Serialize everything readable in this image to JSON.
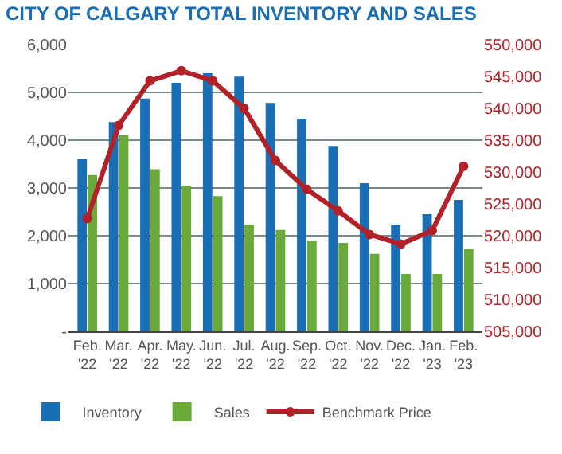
{
  "chart_data": {
    "type": "bar",
    "title": "CITY OF CALGARY TOTAL INVENTORY AND SALES",
    "categories": [
      "Feb. '22",
      "Mar. '22",
      "Apr. '22",
      "May. '22",
      "Jun. '22",
      "Jul. '22",
      "Aug. '22",
      "Sep. '22",
      "Oct. '22",
      "Nov. '22",
      "Dec. '22",
      "Jan. '23",
      "Feb. '23"
    ],
    "series": [
      {
        "name": "Inventory",
        "color": "#1a6fb4",
        "values": [
          3600,
          4380,
          4870,
          5200,
          5400,
          5330,
          4780,
          4450,
          3880,
          3100,
          2220,
          2450,
          2750
        ]
      },
      {
        "name": "Sales",
        "color": "#6aaa3a",
        "values": [
          3270,
          4100,
          3390,
          3050,
          2830,
          2230,
          2120,
          1900,
          1850,
          1620,
          1200,
          1200,
          1730
        ]
      },
      {
        "name": "Benchmark Price",
        "type": "line",
        "axis": "y2",
        "color": "#b22028",
        "marker": "circle",
        "values": [
          522700,
          537300,
          544300,
          545900,
          544300,
          540000,
          531800,
          527300,
          523900,
          520200,
          518700,
          520800,
          530900
        ]
      }
    ],
    "ylim": [
      0,
      6000
    ],
    "yticks": [
      {
        "value": 0,
        "label": "-"
      },
      {
        "value": 1000,
        "label": "1,000"
      },
      {
        "value": 2000,
        "label": "2,000"
      },
      {
        "value": 3000,
        "label": "3,000"
      },
      {
        "value": 4000,
        "label": "4,000"
      },
      {
        "value": 5000,
        "label": "5,000"
      },
      {
        "value": 6000,
        "label": "6,000"
      }
    ],
    "y2lim": [
      505000,
      550000
    ],
    "y2ticks": [
      {
        "value": 505000,
        "label": "505,000"
      },
      {
        "value": 510000,
        "label": "510,000"
      },
      {
        "value": 515000,
        "label": "515,000"
      },
      {
        "value": 520000,
        "label": "520,000"
      },
      {
        "value": 525000,
        "label": "525,000"
      },
      {
        "value": 530000,
        "label": "530,000"
      },
      {
        "value": 535000,
        "label": "535,000"
      },
      {
        "value": 540000,
        "label": "540,000"
      },
      {
        "value": 545000,
        "label": "545,000"
      },
      {
        "value": 550000,
        "label": "550,000"
      }
    ],
    "grid": "y",
    "legend": "bottom"
  }
}
